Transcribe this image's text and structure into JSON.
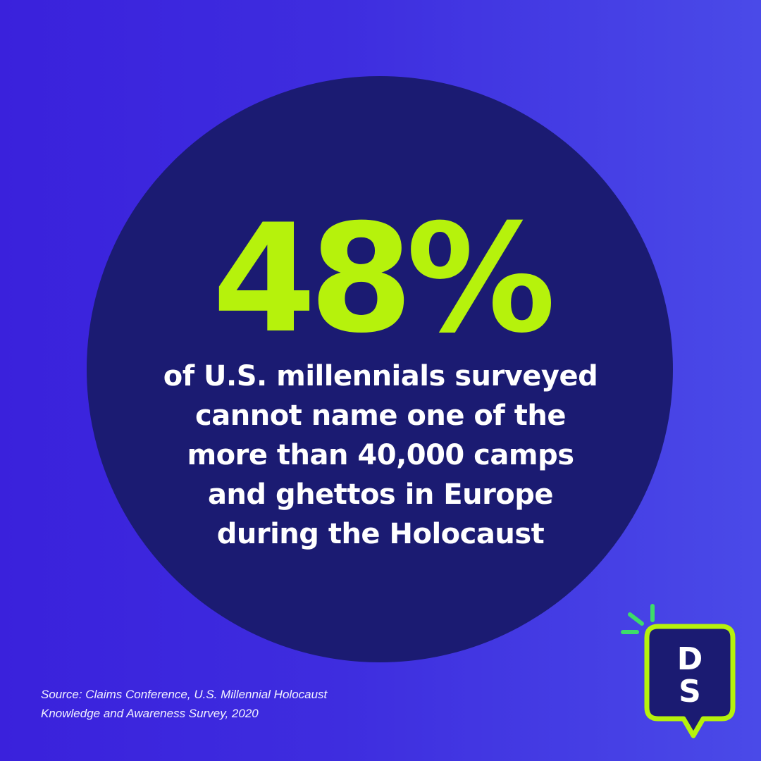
{
  "stat": {
    "value": "48%"
  },
  "description": {
    "lines": [
      "of U.S. millennials surveyed",
      "cannot name one of the",
      "more than 40,000 camps",
      "and ghettos in Europe",
      "during the Holocaust"
    ]
  },
  "source": {
    "lines": [
      "Source: Claims Conference, U.S. Millennial Holocaust",
      "Knowledge and Awareness Survey, 2020"
    ]
  },
  "logo": {
    "letters": [
      "D",
      "S"
    ],
    "icon": "speech-bubble-logo-icon"
  },
  "colors": {
    "background_start": "#3a21dc",
    "background_end": "#4a4ae8",
    "circle": "#1b1b72",
    "accent": "#b6f20c",
    "text": "#ffffff",
    "logo_sparks": "#3ddc6a"
  }
}
